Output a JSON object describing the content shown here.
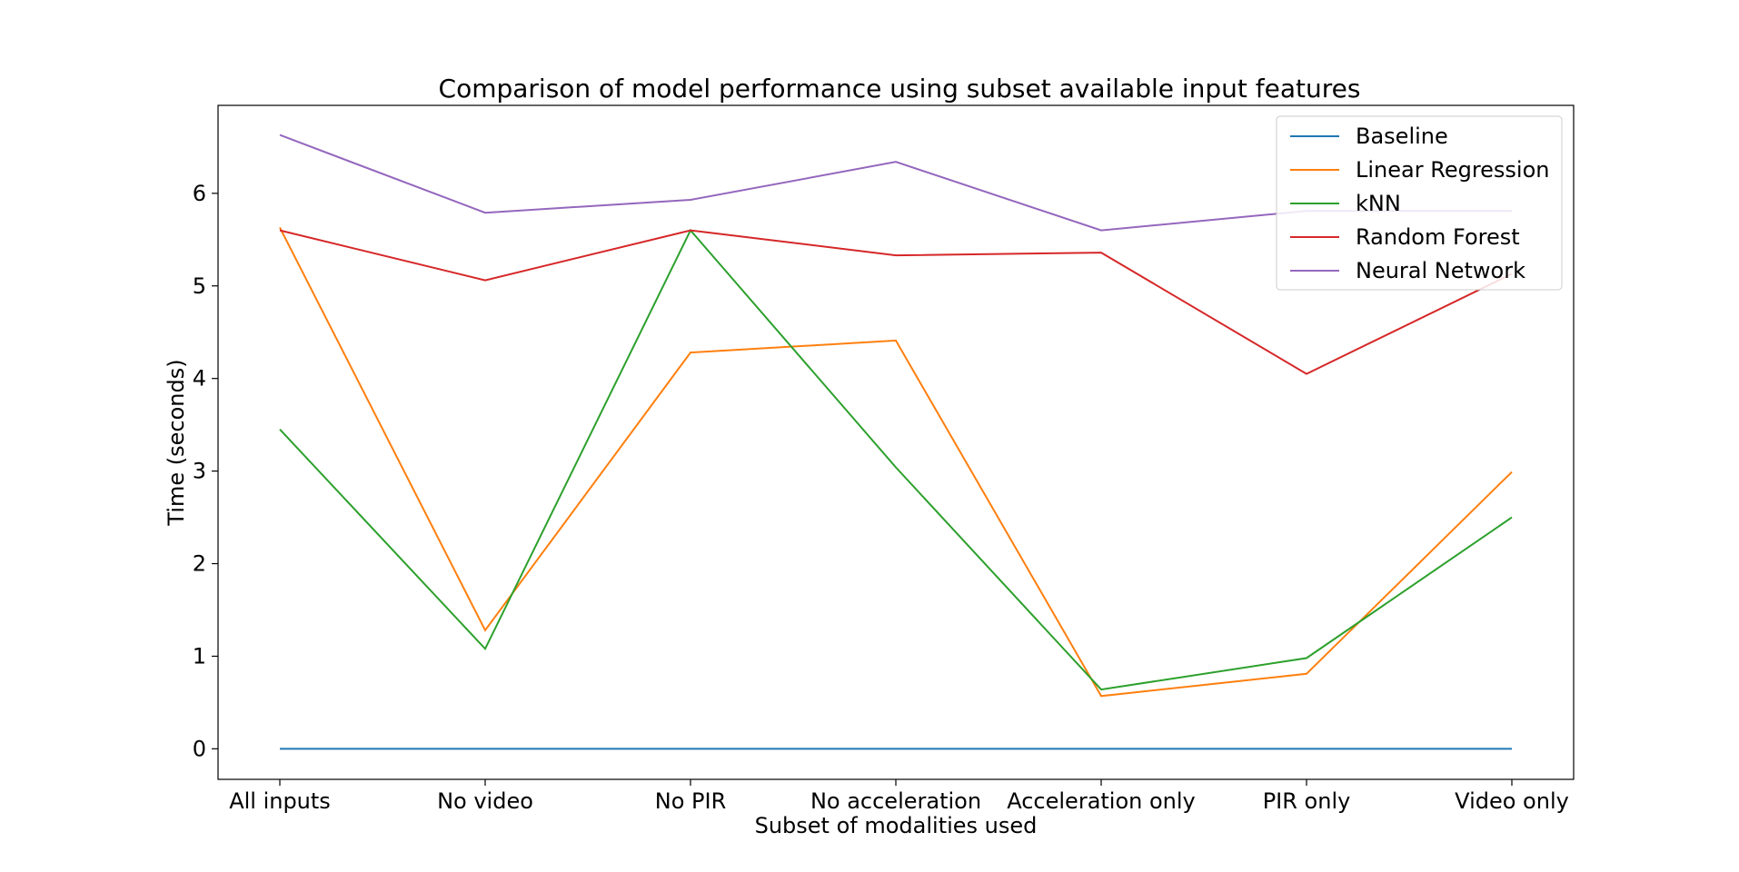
{
  "chart_data": {
    "type": "line",
    "title": "Comparison of model performance using subset available input features",
    "xlabel": "Subset of modalities used",
    "ylabel": "Time (seconds)",
    "categories": [
      "All inputs",
      "No video",
      "No PIR",
      "No acceleration",
      "Acceleration only",
      "PIR only",
      "Video only"
    ],
    "ylim": [
      -0.33,
      6.95
    ],
    "yticks": [
      0,
      1,
      2,
      3,
      4,
      5,
      6
    ],
    "grid": false,
    "legend_position": "top-right",
    "series": [
      {
        "name": "Baseline",
        "color": "#1f77b4",
        "values": [
          0,
          0,
          0,
          0,
          0,
          0,
          0
        ]
      },
      {
        "name": "Linear Regression",
        "color": "#ff7f0e",
        "values": [
          5.63,
          1.28,
          4.28,
          4.41,
          0.57,
          0.81,
          2.99
        ]
      },
      {
        "name": "kNN",
        "color": "#2ca02c",
        "values": [
          3.45,
          1.08,
          5.6,
          3.04,
          0.64,
          0.98,
          2.5
        ]
      },
      {
        "name": "Random Forest",
        "color": "#d62728",
        "values": [
          5.6,
          5.06,
          5.6,
          5.33,
          5.36,
          4.05,
          5.13
        ]
      },
      {
        "name": "Neural Network",
        "color": "#9467bd",
        "values": [
          6.63,
          5.79,
          5.93,
          6.34,
          5.6,
          5.81,
          5.81
        ]
      }
    ]
  }
}
